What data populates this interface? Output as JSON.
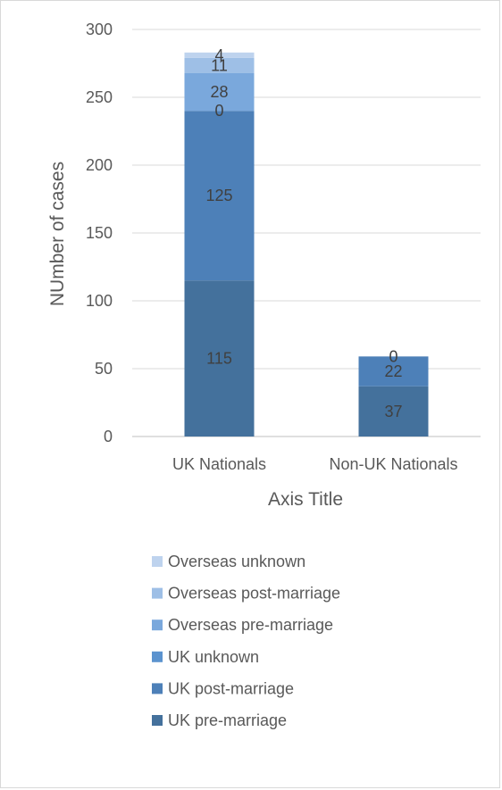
{
  "chart_data": {
    "type": "bar",
    "stacked": true,
    "categories": [
      "UK Nationals",
      "Non-UK Nationals"
    ],
    "series": [
      {
        "name": "UK pre-marriage",
        "values": [
          115,
          37
        ],
        "color": "#44719c"
      },
      {
        "name": "UK post-marriage",
        "values": [
          125,
          22
        ],
        "color": "#4d80b8"
      },
      {
        "name": "UK unknown",
        "values": [
          0,
          0
        ],
        "color": "#5b93cf"
      },
      {
        "name": "Overseas pre-marriage",
        "values": [
          28,
          0
        ],
        "color": "#7aa8dc"
      },
      {
        "name": "Overseas post-marriage",
        "values": [
          11,
          0
        ],
        "color": "#9ebfe6"
      },
      {
        "name": "Overseas unknown",
        "values": [
          4,
          0
        ],
        "color": "#bed3ee"
      }
    ],
    "data_labels": [
      [
        "115",
        "37"
      ],
      [
        "125",
        "22"
      ],
      [
        "0",
        "0"
      ],
      [
        "28",
        ""
      ],
      [
        "11",
        ""
      ],
      [
        "4",
        ""
      ]
    ],
    "ylabel": "NUmber of cases",
    "xlabel": "Axis Title",
    "ylim": [
      0,
      300
    ],
    "yticks": [
      0,
      50,
      100,
      150,
      200,
      250,
      300
    ],
    "grid": true,
    "legend_position": "bottom"
  }
}
